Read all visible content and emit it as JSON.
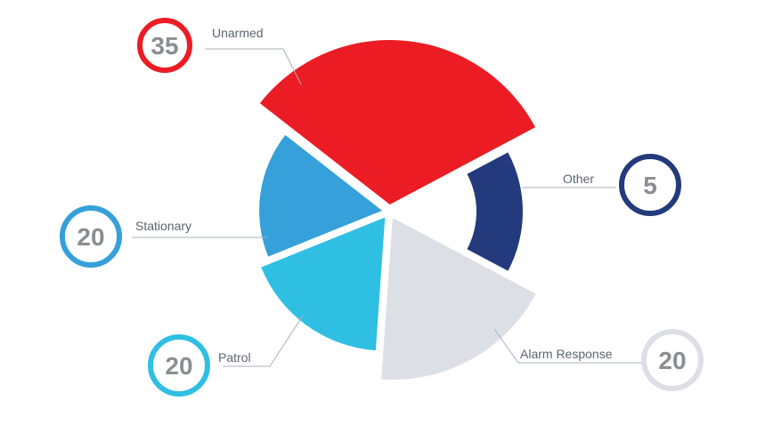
{
  "chart_data": {
    "type": "pie",
    "title": "",
    "slices": [
      {
        "label": "Unarmed",
        "value": 35,
        "color": "#ec1c24"
      },
      {
        "label": "Other",
        "value": 5,
        "color": "#233a7c"
      },
      {
        "label": "Alarm Response",
        "value": 20,
        "color": "#dcdfe6"
      },
      {
        "label": "Patrol",
        "value": 20,
        "color": "#2fbfe2"
      },
      {
        "label": "Stationary",
        "value": 20,
        "color": "#35a0d9"
      }
    ]
  }
}
